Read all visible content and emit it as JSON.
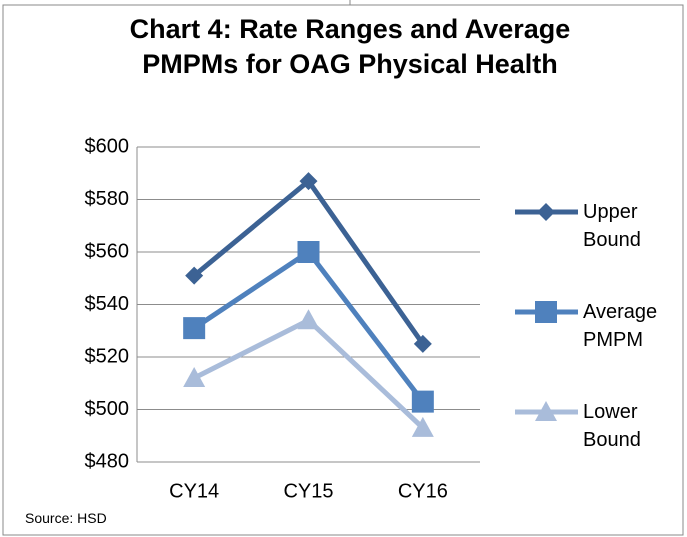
{
  "chart_data": {
    "type": "line",
    "title": "Chart 4: Rate Ranges and Average PMPMs for OAG Physical Health",
    "source": "Source: HSD",
    "categories": [
      "CY14",
      "CY15",
      "CY16"
    ],
    "series": [
      {
        "name": "Upper Bound",
        "color": "#3c6294",
        "marker": "diamond",
        "values": [
          551,
          587,
          525
        ]
      },
      {
        "name": "Average PMPM",
        "color": "#4f81bd",
        "marker": "square",
        "values": [
          531,
          560,
          503
        ]
      },
      {
        "name": "Lower Bound",
        "color": "#a9bcda",
        "marker": "triangle",
        "values": [
          512,
          534,
          493
        ]
      }
    ],
    "ylim": [
      480,
      600
    ],
    "yticks": [
      {
        "value": 480,
        "label": "$480"
      },
      {
        "value": 500,
        "label": "$500"
      },
      {
        "value": 520,
        "label": "$520"
      },
      {
        "value": 540,
        "label": "$540"
      },
      {
        "value": 560,
        "label": "$560"
      },
      {
        "value": 580,
        "label": "$580"
      },
      {
        "value": 600,
        "label": "$600"
      }
    ],
    "grid": true,
    "legend": "right"
  }
}
